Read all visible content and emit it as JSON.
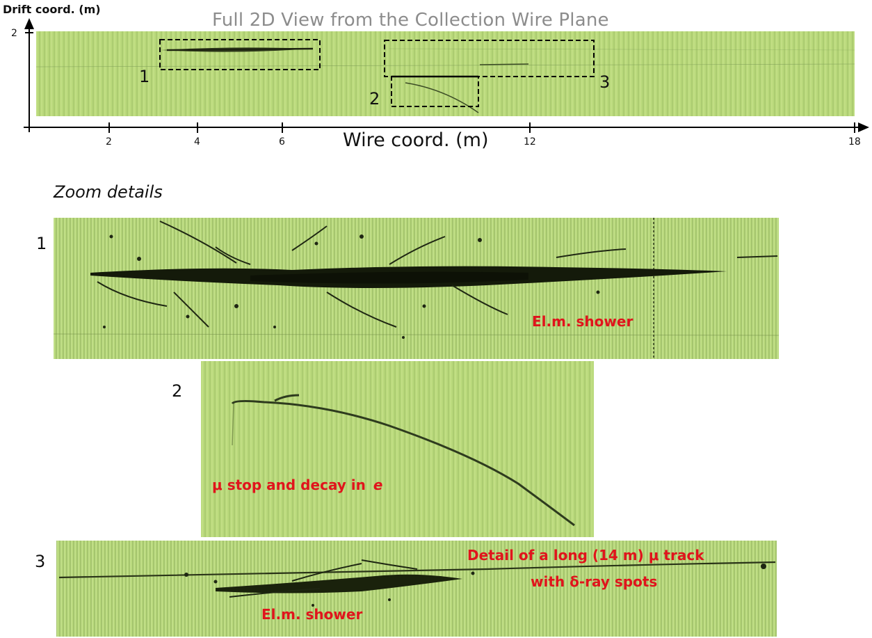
{
  "header": {
    "title": "Full 2D View from the Collection Wire Plane",
    "drift_axis_label": "Drift coord. (m)",
    "drift_tick": "2",
    "wire_axis_label": "Wire coord. (m)",
    "wire_ticks": [
      "2",
      "4",
      "6",
      "12",
      "18"
    ]
  },
  "overview": {
    "regions": [
      "1",
      "2",
      "3"
    ]
  },
  "zoom": {
    "title": "Zoom details",
    "panel1": {
      "number": "1",
      "note": "El.m. shower"
    },
    "panel2": {
      "number": "2",
      "note_symbol": "μ",
      "note_text": "stop and decay in",
      "note_particle": "e"
    },
    "panel3": {
      "number": "3",
      "note_line1": "Detail of a long (14 m) μ track",
      "note_line2": "with δ-ray spots",
      "note_shower": "El.m. shower"
    }
  },
  "colors": {
    "background": "#b9d97b",
    "annotation": "#e0141c",
    "title": "#8c8c8c"
  }
}
